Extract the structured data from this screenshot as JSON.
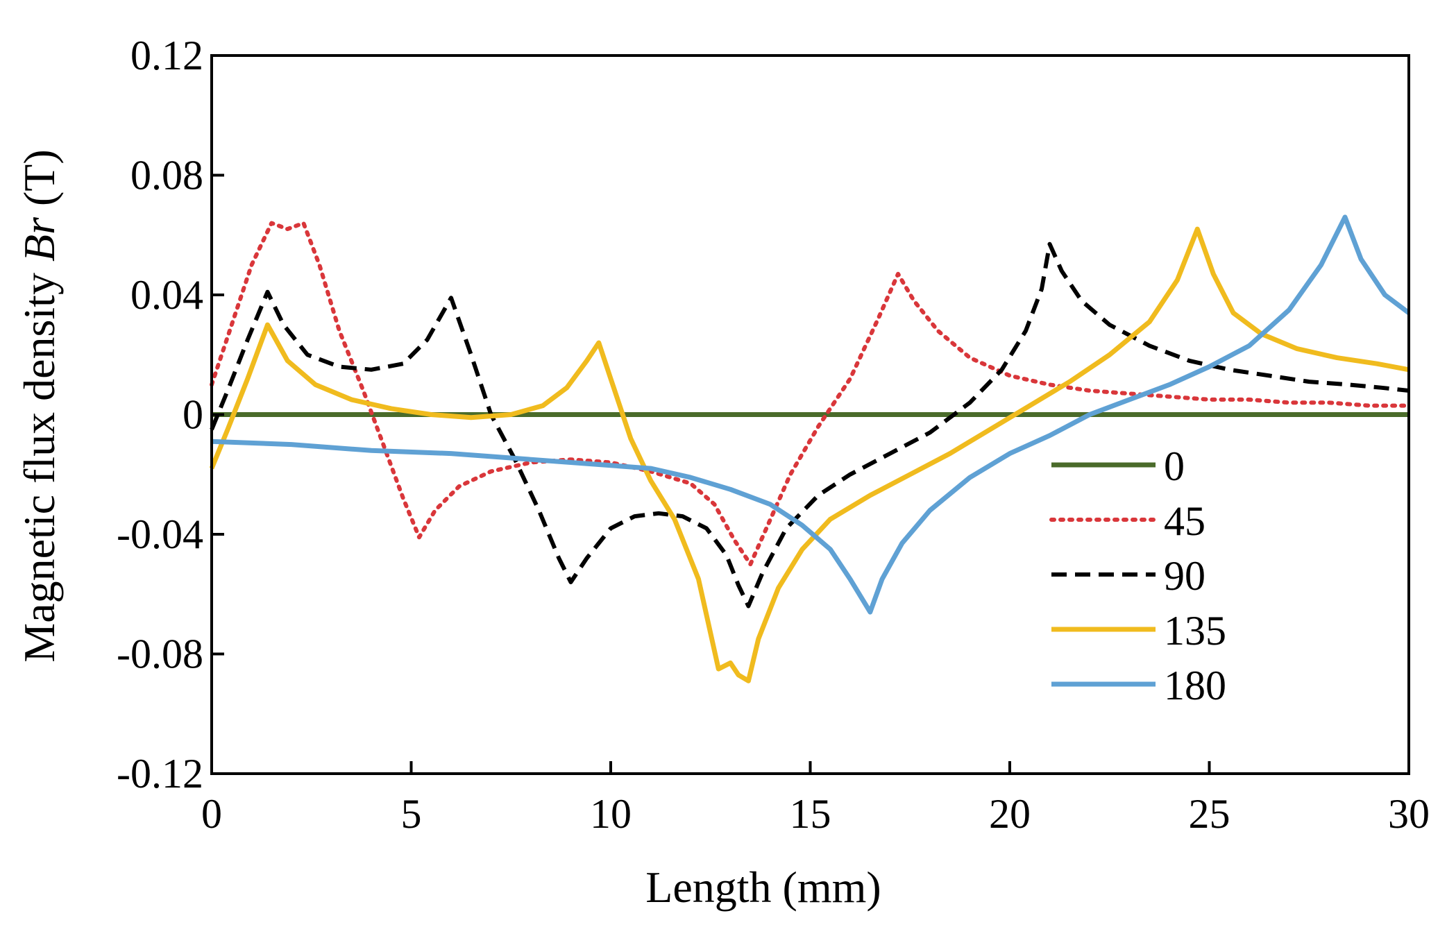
{
  "chart_data": {
    "type": "line",
    "title": "",
    "xlabel": "Length (mm)",
    "ylabel_prefix": "Magnetic flux density ",
    "ylabel_var": "Br",
    "ylabel_suffix": " (T)",
    "xlim": [
      0,
      30
    ],
    "ylim": [
      -0.12,
      0.12
    ],
    "x_ticks": [
      0,
      5,
      10,
      15,
      20,
      25,
      30
    ],
    "x_tick_labels": [
      "0",
      "5",
      "10",
      "15",
      "20",
      "25",
      "30"
    ],
    "y_ticks": [
      0.12,
      0.08,
      0.04,
      0,
      -0.04,
      -0.08,
      -0.12
    ],
    "y_tick_labels": [
      "0.12",
      "0.08",
      "0.04",
      "0",
      "-0.04",
      "-0.08",
      "-0.12"
    ],
    "grid": false,
    "legend_position": "lower-right",
    "series": [
      {
        "name": "0",
        "color": "#4a6b2a",
        "style": "solid",
        "points": [
          [
            0,
            0.0
          ],
          [
            5,
            0.0
          ],
          [
            10,
            0.0
          ],
          [
            13.5,
            0.0
          ],
          [
            15,
            0.0
          ],
          [
            20,
            0.0
          ],
          [
            25,
            0.0
          ],
          [
            30,
            0.0
          ]
        ]
      },
      {
        "name": "45",
        "color": "#d9363a",
        "style": "dotted",
        "points": [
          [
            0,
            0.01
          ],
          [
            0.5,
            0.03
          ],
          [
            1,
            0.05
          ],
          [
            1.5,
            0.064
          ],
          [
            1.9,
            0.062
          ],
          [
            2.3,
            0.064
          ],
          [
            2.7,
            0.05
          ],
          [
            3.2,
            0.028
          ],
          [
            3.8,
            0.008
          ],
          [
            4.3,
            -0.01
          ],
          [
            4.8,
            -0.028
          ],
          [
            5.2,
            -0.041
          ],
          [
            5.6,
            -0.032
          ],
          [
            6.2,
            -0.024
          ],
          [
            7,
            -0.019
          ],
          [
            8,
            -0.016
          ],
          [
            9,
            -0.015
          ],
          [
            10,
            -0.016
          ],
          [
            11,
            -0.019
          ],
          [
            12,
            -0.023
          ],
          [
            12.6,
            -0.03
          ],
          [
            13.1,
            -0.042
          ],
          [
            13.5,
            -0.05
          ],
          [
            13.9,
            -0.038
          ],
          [
            14.5,
            -0.02
          ],
          [
            15.2,
            -0.004
          ],
          [
            16,
            0.012
          ],
          [
            16.7,
            0.032
          ],
          [
            17.2,
            0.047
          ],
          [
            17.6,
            0.038
          ],
          [
            18.2,
            0.028
          ],
          [
            19,
            0.019
          ],
          [
            20,
            0.013
          ],
          [
            21,
            0.01
          ],
          [
            22,
            0.008
          ],
          [
            23,
            0.007
          ],
          [
            24,
            0.006
          ],
          [
            25,
            0.005
          ],
          [
            26,
            0.005
          ],
          [
            27,
            0.004
          ],
          [
            28,
            0.004
          ],
          [
            29,
            0.003
          ],
          [
            30,
            0.003
          ]
        ]
      },
      {
        "name": "90",
        "color": "#000000",
        "style": "dashed",
        "points": [
          [
            0,
            -0.005
          ],
          [
            0.4,
            0.008
          ],
          [
            0.9,
            0.025
          ],
          [
            1.4,
            0.041
          ],
          [
            1.8,
            0.03
          ],
          [
            2.4,
            0.02
          ],
          [
            3.2,
            0.016
          ],
          [
            4,
            0.015
          ],
          [
            4.8,
            0.017
          ],
          [
            5.4,
            0.025
          ],
          [
            6,
            0.039
          ],
          [
            6.5,
            0.02
          ],
          [
            7,
            0.0
          ],
          [
            7.6,
            -0.015
          ],
          [
            8.2,
            -0.032
          ],
          [
            8.7,
            -0.048
          ],
          [
            9,
            -0.056
          ],
          [
            9.4,
            -0.048
          ],
          [
            10,
            -0.038
          ],
          [
            10.6,
            -0.034
          ],
          [
            11.2,
            -0.033
          ],
          [
            11.8,
            -0.034
          ],
          [
            12.4,
            -0.038
          ],
          [
            12.9,
            -0.047
          ],
          [
            13.2,
            -0.057
          ],
          [
            13.45,
            -0.064
          ],
          [
            13.8,
            -0.053
          ],
          [
            14.4,
            -0.038
          ],
          [
            15.2,
            -0.027
          ],
          [
            16,
            -0.02
          ],
          [
            17,
            -0.013
          ],
          [
            18,
            -0.006
          ],
          [
            19,
            0.004
          ],
          [
            19.8,
            0.015
          ],
          [
            20.4,
            0.028
          ],
          [
            20.8,
            0.042
          ],
          [
            21,
            0.057
          ],
          [
            21.3,
            0.048
          ],
          [
            21.8,
            0.038
          ],
          [
            22.5,
            0.03
          ],
          [
            23.5,
            0.023
          ],
          [
            24.5,
            0.018
          ],
          [
            25.5,
            0.015
          ],
          [
            26.5,
            0.013
          ],
          [
            27.5,
            0.011
          ],
          [
            28.5,
            0.01
          ],
          [
            29.3,
            0.009
          ],
          [
            30,
            0.008
          ]
        ]
      },
      {
        "name": "135",
        "color": "#f0bb1e",
        "style": "solid",
        "points": [
          [
            0,
            -0.018
          ],
          [
            0.4,
            -0.005
          ],
          [
            0.9,
            0.012
          ],
          [
            1.4,
            0.03
          ],
          [
            1.9,
            0.018
          ],
          [
            2.6,
            0.01
          ],
          [
            3.5,
            0.005
          ],
          [
            4.5,
            0.002
          ],
          [
            5.5,
            0.0
          ],
          [
            6.5,
            -0.001
          ],
          [
            7.5,
            0.0
          ],
          [
            8.3,
            0.003
          ],
          [
            8.9,
            0.009
          ],
          [
            9.4,
            0.018
          ],
          [
            9.7,
            0.024
          ],
          [
            10,
            0.012
          ],
          [
            10.5,
            -0.008
          ],
          [
            11,
            -0.022
          ],
          [
            11.6,
            -0.035
          ],
          [
            12.2,
            -0.055
          ],
          [
            12.7,
            -0.085
          ],
          [
            13,
            -0.083
          ],
          [
            13.2,
            -0.087
          ],
          [
            13.45,
            -0.089
          ],
          [
            13.7,
            -0.075
          ],
          [
            14.2,
            -0.058
          ],
          [
            14.8,
            -0.045
          ],
          [
            15.5,
            -0.035
          ],
          [
            16.5,
            -0.027
          ],
          [
            17.5,
            -0.02
          ],
          [
            18.5,
            -0.013
          ],
          [
            19.5,
            -0.005
          ],
          [
            20.5,
            0.003
          ],
          [
            21.5,
            0.011
          ],
          [
            22.5,
            0.02
          ],
          [
            23.5,
            0.031
          ],
          [
            24.2,
            0.045
          ],
          [
            24.7,
            0.062
          ],
          [
            25.1,
            0.047
          ],
          [
            25.6,
            0.034
          ],
          [
            26.3,
            0.027
          ],
          [
            27.2,
            0.022
          ],
          [
            28.2,
            0.019
          ],
          [
            29.2,
            0.017
          ],
          [
            30,
            0.015
          ]
        ]
      },
      {
        "name": "180",
        "color": "#5fa1d4",
        "style": "solid",
        "points": [
          [
            0,
            -0.009
          ],
          [
            2,
            -0.01
          ],
          [
            4,
            -0.012
          ],
          [
            6,
            -0.013
          ],
          [
            8,
            -0.015
          ],
          [
            10,
            -0.017
          ],
          [
            11,
            -0.018
          ],
          [
            12,
            -0.021
          ],
          [
            13,
            -0.025
          ],
          [
            14,
            -0.03
          ],
          [
            14.8,
            -0.037
          ],
          [
            15.5,
            -0.045
          ],
          [
            16,
            -0.055
          ],
          [
            16.5,
            -0.066
          ],
          [
            16.8,
            -0.055
          ],
          [
            17.3,
            -0.043
          ],
          [
            18,
            -0.032
          ],
          [
            19,
            -0.021
          ],
          [
            20,
            -0.013
          ],
          [
            21,
            -0.007
          ],
          [
            22,
            0.0
          ],
          [
            23,
            0.005
          ],
          [
            24,
            0.01
          ],
          [
            25,
            0.016
          ],
          [
            26,
            0.023
          ],
          [
            27,
            0.035
          ],
          [
            27.8,
            0.05
          ],
          [
            28.4,
            0.066
          ],
          [
            28.8,
            0.052
          ],
          [
            29.4,
            0.04
          ],
          [
            30,
            0.034
          ]
        ]
      }
    ]
  }
}
